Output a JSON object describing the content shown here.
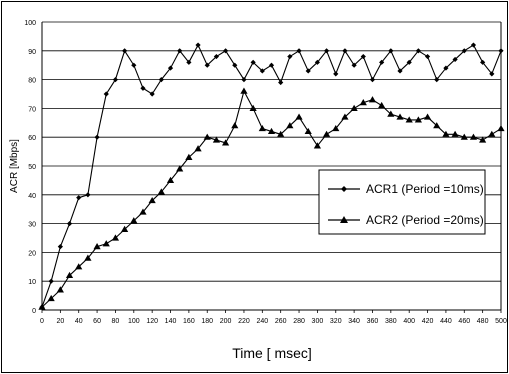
{
  "chart_data": {
    "type": "line",
    "xlabel": "Time [ msec]",
    "ylabel": "ACR [Mbps]",
    "xlim": [
      0,
      500
    ],
    "ylim": [
      0,
      100
    ],
    "x_ticks": [
      0,
      20,
      40,
      60,
      80,
      100,
      120,
      140,
      160,
      180,
      200,
      220,
      240,
      260,
      280,
      300,
      320,
      340,
      360,
      380,
      400,
      420,
      440,
      460,
      480,
      500
    ],
    "y_ticks": [
      0,
      10,
      20,
      30,
      40,
      50,
      60,
      70,
      80,
      90,
      100
    ],
    "grid": "horizontal",
    "legend_position": "right",
    "series": [
      {
        "name": "ACR1 (Period =10ms)",
        "marker": "diamond",
        "points": [
          [
            0,
            1
          ],
          [
            10,
            10
          ],
          [
            20,
            22
          ],
          [
            30,
            30
          ],
          [
            40,
            39
          ],
          [
            50,
            40
          ],
          [
            60,
            60
          ],
          [
            70,
            75
          ],
          [
            80,
            80
          ],
          [
            90,
            90
          ],
          [
            100,
            85
          ],
          [
            110,
            77
          ],
          [
            120,
            75
          ],
          [
            130,
            80
          ],
          [
            140,
            84
          ],
          [
            150,
            90
          ],
          [
            160,
            86
          ],
          [
            170,
            92
          ],
          [
            180,
            85
          ],
          [
            190,
            88
          ],
          [
            200,
            90
          ],
          [
            210,
            85
          ],
          [
            220,
            80
          ],
          [
            230,
            86
          ],
          [
            240,
            83
          ],
          [
            250,
            85
          ],
          [
            260,
            79
          ],
          [
            270,
            88
          ],
          [
            280,
            90
          ],
          [
            290,
            83
          ],
          [
            300,
            86
          ],
          [
            310,
            90
          ],
          [
            320,
            82
          ],
          [
            330,
            90
          ],
          [
            340,
            85
          ],
          [
            350,
            88
          ],
          [
            360,
            80
          ],
          [
            370,
            86
          ],
          [
            380,
            90
          ],
          [
            390,
            83
          ],
          [
            400,
            86
          ],
          [
            410,
            90
          ],
          [
            420,
            88
          ],
          [
            430,
            80
          ],
          [
            440,
            84
          ],
          [
            450,
            87
          ],
          [
            460,
            90
          ],
          [
            470,
            92
          ],
          [
            480,
            86
          ],
          [
            490,
            82
          ],
          [
            500,
            90
          ]
        ]
      },
      {
        "name": "ACR2 (Period =20ms)",
        "marker": "triangle",
        "points": [
          [
            0,
            1
          ],
          [
            10,
            4
          ],
          [
            20,
            7
          ],
          [
            30,
            12
          ],
          [
            40,
            15
          ],
          [
            50,
            18
          ],
          [
            60,
            22
          ],
          [
            70,
            23
          ],
          [
            80,
            25
          ],
          [
            90,
            28
          ],
          [
            100,
            31
          ],
          [
            110,
            34
          ],
          [
            120,
            38
          ],
          [
            130,
            41
          ],
          [
            140,
            45
          ],
          [
            150,
            49
          ],
          [
            160,
            53
          ],
          [
            170,
            56
          ],
          [
            180,
            60
          ],
          [
            190,
            59
          ],
          [
            200,
            58
          ],
          [
            210,
            64
          ],
          [
            220,
            76
          ],
          [
            230,
            70
          ],
          [
            240,
            63
          ],
          [
            250,
            62
          ],
          [
            260,
            61
          ],
          [
            270,
            64
          ],
          [
            280,
            67
          ],
          [
            290,
            62
          ],
          [
            300,
            57
          ],
          [
            310,
            61
          ],
          [
            320,
            63
          ],
          [
            330,
            67
          ],
          [
            340,
            70
          ],
          [
            350,
            72
          ],
          [
            360,
            73
          ],
          [
            370,
            71
          ],
          [
            380,
            68
          ],
          [
            390,
            67
          ],
          [
            400,
            66
          ],
          [
            410,
            66
          ],
          [
            420,
            67
          ],
          [
            430,
            64
          ],
          [
            440,
            61
          ],
          [
            450,
            61
          ],
          [
            460,
            60
          ],
          [
            470,
            60
          ],
          [
            480,
            59
          ],
          [
            490,
            61
          ],
          [
            500,
            63
          ]
        ]
      }
    ]
  }
}
